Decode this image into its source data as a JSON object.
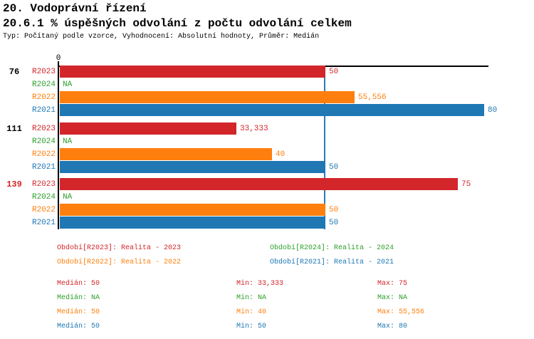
{
  "header": {
    "title": "20. Vodoprávní řízení",
    "subtitle": "20.6.1 % úspěšných odvolání z počtu odvolání celkem",
    "meta": "Typ: Počítaný podle vzorce, Vyhodnocení: Absolutní hodnoty, Průměr: Medián"
  },
  "palette": {
    "R2023": "#d2262b",
    "R2024": "#2ca02c",
    "R2022": "#ff7f0e",
    "R2021": "#1f77b4",
    "axis": "#000000",
    "median_line": "#2e7cb8",
    "group_label_default": "#000000",
    "group_label_highlight": "#d2262b"
  },
  "chart_data": {
    "type": "bar",
    "orientation": "horizontal",
    "title": "20.6.1 % úspěšných odvolání z počtu odvolání celkem",
    "x_axis": {
      "origin_label": "0",
      "max": 80.8,
      "gridlines": false
    },
    "median_line_at": 50,
    "series_order": [
      "R2023",
      "R2024",
      "R2022",
      "R2021"
    ],
    "groups": [
      {
        "label": "76",
        "highlight": false,
        "bars": [
          {
            "series": "R2023",
            "value": 50,
            "display": "50"
          },
          {
            "series": "R2024",
            "value": null,
            "display": "NA"
          },
          {
            "series": "R2022",
            "value": 55.556,
            "display": "55,556"
          },
          {
            "series": "R2021",
            "value": 80,
            "display": "80"
          }
        ]
      },
      {
        "label": "111",
        "highlight": false,
        "bars": [
          {
            "series": "R2023",
            "value": 33.333,
            "display": "33,333"
          },
          {
            "series": "R2024",
            "value": null,
            "display": "NA"
          },
          {
            "series": "R2022",
            "value": 40,
            "display": "40"
          },
          {
            "series": "R2021",
            "value": 50,
            "display": "50"
          }
        ]
      },
      {
        "label": "139",
        "highlight": true,
        "bars": [
          {
            "series": "R2023",
            "value": 75,
            "display": "75"
          },
          {
            "series": "R2024",
            "value": null,
            "display": "NA"
          },
          {
            "series": "R2022",
            "value": 50,
            "display": "50"
          },
          {
            "series": "R2021",
            "value": 50,
            "display": "50"
          }
        ]
      }
    ]
  },
  "legend": [
    {
      "series": "R2023",
      "label": "Období[R2023]: Realita - 2023"
    },
    {
      "series": "R2024",
      "label": "Období[R2024]: Realita - 2024"
    },
    {
      "series": "R2022",
      "label": "Období[R2022]: Realita - 2022"
    },
    {
      "series": "R2021",
      "label": "Období[R2021]: Realita - 2021"
    }
  ],
  "stats": [
    {
      "series": "R2023",
      "median": "Medián: 50",
      "min": "Min: 33,333",
      "max": "Max: 75"
    },
    {
      "series": "R2024",
      "median": "Medián: NA",
      "min": "Min: NA",
      "max": "Max: NA"
    },
    {
      "series": "R2022",
      "median": "Medián: 50",
      "min": "Min: 40",
      "max": "Max: 55,556"
    },
    {
      "series": "R2021",
      "median": "Medián: 50",
      "min": "Min: 50",
      "max": "Max: 80"
    }
  ]
}
